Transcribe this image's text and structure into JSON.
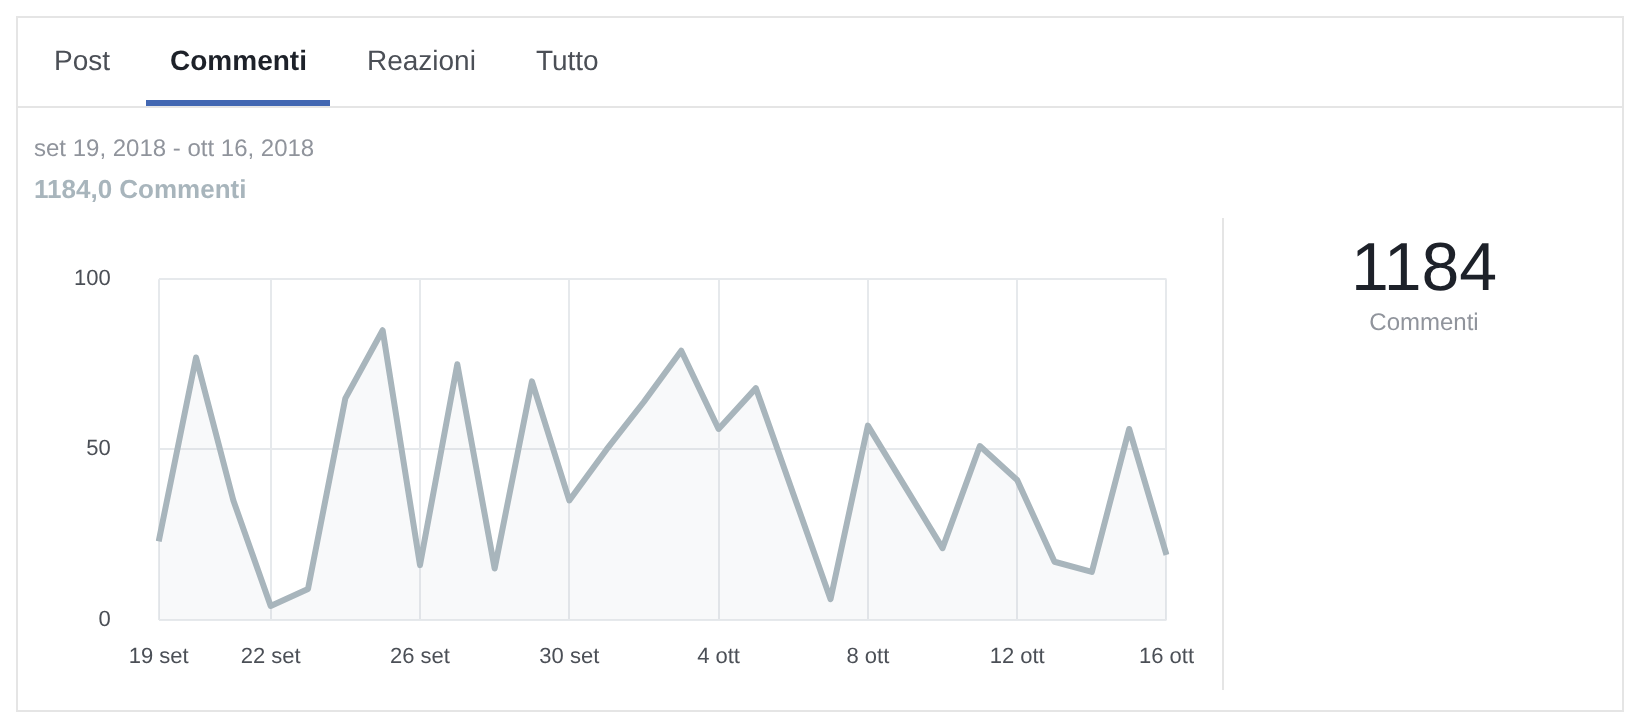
{
  "chart_data": {
    "type": "area",
    "title": "1184,0 Commenti",
    "subtitle": "set 19, 2018 - ott 16, 2018",
    "annotations": [
      "Post",
      "Commenti",
      "Reazioni",
      "Tutto",
      "1184",
      "Commenti"
    ],
    "categories": [
      "19 set",
      null,
      null,
      "22 set",
      null,
      null,
      null,
      "26 set",
      null,
      null,
      null,
      "30 set",
      null,
      null,
      null,
      "4 ott",
      null,
      null,
      null,
      "8 ott",
      null,
      null,
      null,
      "12 ott",
      null,
      null,
      null,
      "16 ott"
    ],
    "series": [
      {
        "color": "#a8b5bc",
        "values": [
          23,
          77,
          35,
          4,
          9,
          65,
          85,
          16,
          75,
          15,
          70,
          35,
          50,
          64,
          79,
          56,
          68,
          37,
          6,
          57,
          39,
          21,
          51,
          41,
          17,
          14,
          56,
          19
        ]
      }
    ],
    "ylim": [
      0,
      100
    ],
    "yticks": [
      0,
      50,
      100
    ],
    "grid": true
  }
}
